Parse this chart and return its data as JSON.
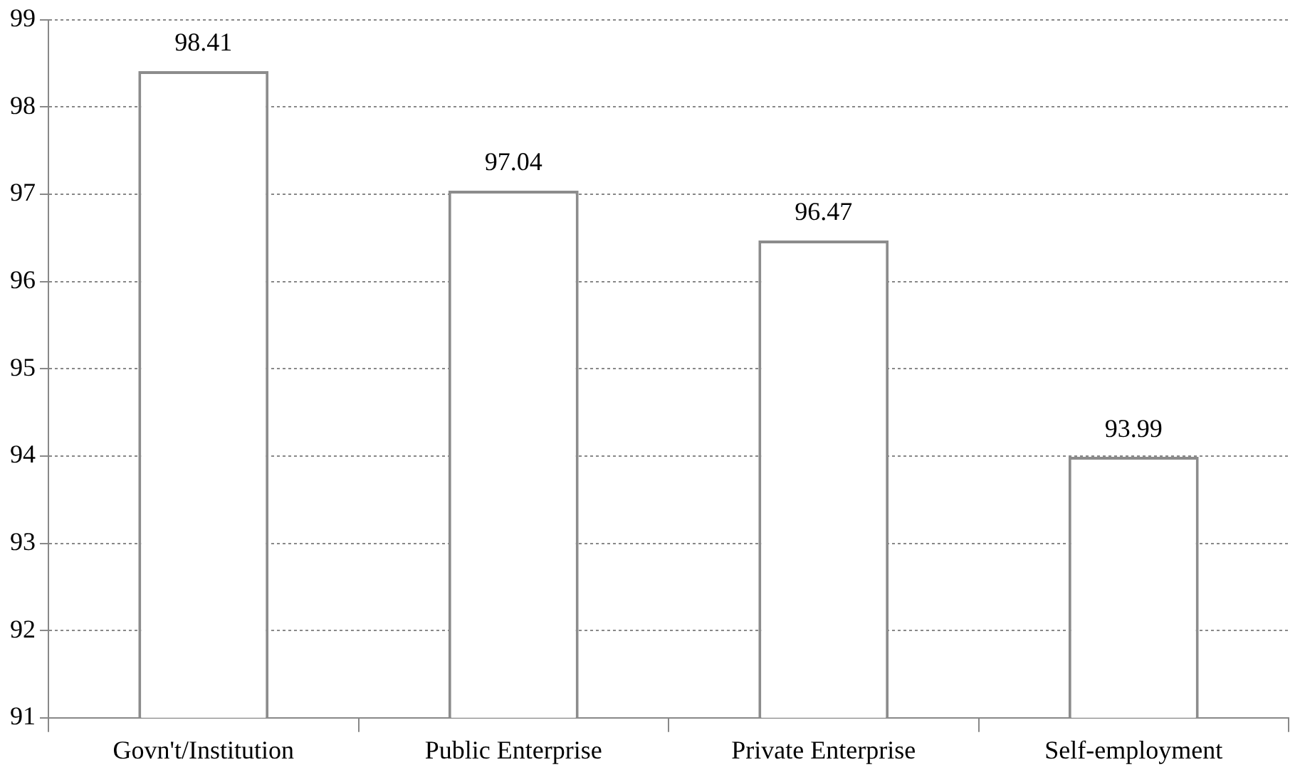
{
  "chart_data": {
    "type": "bar",
    "categories": [
      "Govn't/Institution",
      "Public Enterprise",
      "Private Enterprise",
      "Self-employment"
    ],
    "values": [
      98.41,
      97.04,
      96.47,
      93.99
    ],
    "color": "#ffffff",
    "ylim": [
      91,
      99
    ],
    "yticks": [
      91,
      92,
      93,
      94,
      95,
      96,
      97,
      98,
      99
    ],
    "grid": "y",
    "data_labels": true
  }
}
